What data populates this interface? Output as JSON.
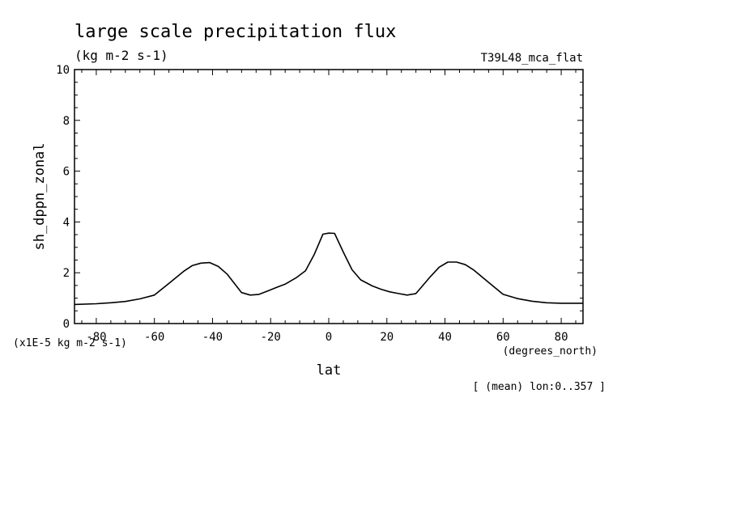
{
  "chart_data": {
    "type": "line",
    "title": "large scale precipitation flux",
    "subtitle": "(kg m-2 s-1)",
    "dataset_label": "T39L48_mca_flat",
    "ylabel": "sh_dppn_zonal",
    "yunits": "(x1E-5 kg m-2 s-1)",
    "xlabel": "lat",
    "xunits": "(degrees_north)",
    "footnote": "[ (mean) lon:0..357 ]",
    "xlim": [
      -87.5,
      87.5
    ],
    "ylim": [
      0,
      10
    ],
    "xticks": [
      -80,
      -60,
      -40,
      -20,
      0,
      20,
      40,
      60,
      80
    ],
    "xtick_labels": [
      "-80",
      "-60",
      "-40",
      "-20",
      "0",
      "20",
      "40",
      "60",
      "80"
    ],
    "yticks": [
      0,
      2,
      4,
      6,
      8,
      10
    ],
    "ytick_labels": [
      "0",
      "2",
      "4",
      "6",
      "8",
      "10"
    ],
    "grid": false,
    "series": [
      {
        "x": [
          -87.5,
          -80,
          -75,
          -70,
          -65,
          -60,
          -55,
          -50,
          -47,
          -44,
          -41,
          -38,
          -35,
          -30,
          -27,
          -24,
          -21,
          -18,
          -15,
          -11,
          -8,
          -5,
          -2,
          0,
          2,
          5,
          8,
          11,
          15,
          18,
          21,
          24,
          27,
          30,
          35,
          38,
          41,
          44,
          47,
          50,
          55,
          60,
          65,
          70,
          75,
          80,
          87.5
        ],
        "y": [
          0.75,
          0.78,
          0.82,
          0.87,
          0.97,
          1.12,
          1.58,
          2.05,
          2.28,
          2.38,
          2.4,
          2.25,
          1.95,
          1.22,
          1.12,
          1.15,
          1.28,
          1.42,
          1.55,
          1.82,
          2.08,
          2.72,
          3.52,
          3.56,
          3.55,
          2.82,
          2.12,
          1.72,
          1.48,
          1.35,
          1.25,
          1.18,
          1.12,
          1.18,
          1.85,
          2.22,
          2.42,
          2.42,
          2.32,
          2.1,
          1.62,
          1.15,
          0.98,
          0.88,
          0.82,
          0.8,
          0.8
        ]
      }
    ]
  }
}
